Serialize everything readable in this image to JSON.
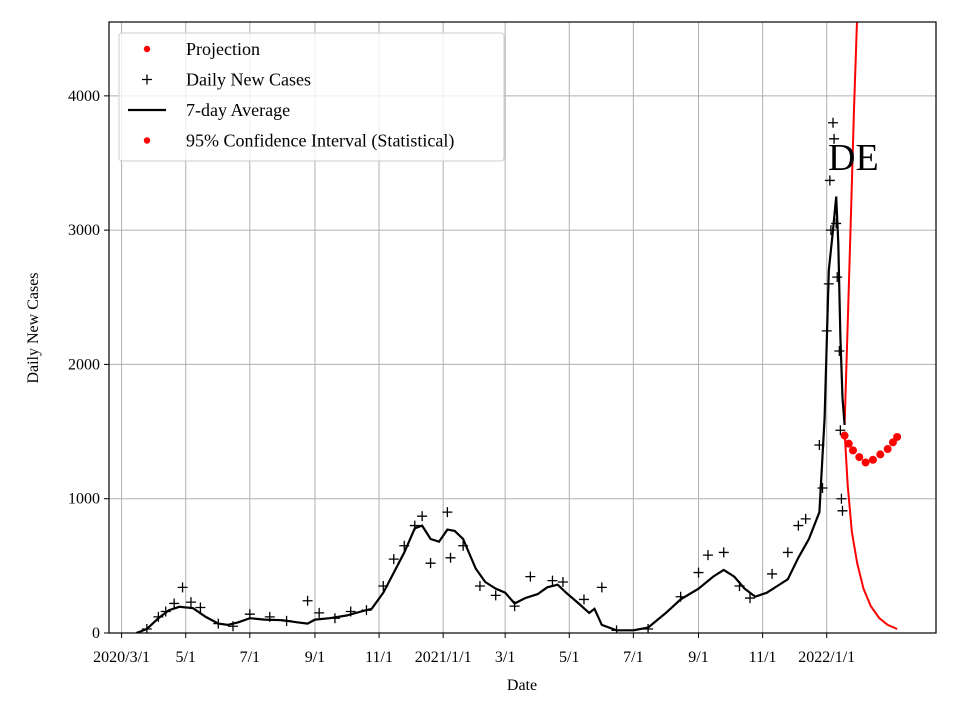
{
  "chart_data": {
    "type": "line",
    "region_label": "DE",
    "xlabel": "Date",
    "ylabel": "Daily New Cases",
    "ylim": [
      0,
      4550
    ],
    "xlim": [
      "2020-02-18",
      "2022-04-15"
    ],
    "grid": true,
    "legend_position": "top-left",
    "x_ticks": [
      {
        "date": "2020-03-01",
        "label": "2020/3/1"
      },
      {
        "date": "2020-05-01",
        "label": "5/1"
      },
      {
        "date": "2020-07-01",
        "label": "7/1"
      },
      {
        "date": "2020-09-01",
        "label": "9/1"
      },
      {
        "date": "2020-11-01",
        "label": "11/1"
      },
      {
        "date": "2021-01-01",
        "label": "2021/1/1"
      },
      {
        "date": "2021-03-01",
        "label": "3/1"
      },
      {
        "date": "2021-05-01",
        "label": "5/1"
      },
      {
        "date": "2021-07-01",
        "label": "7/1"
      },
      {
        "date": "2021-09-01",
        "label": "9/1"
      },
      {
        "date": "2021-11-01",
        "label": "11/1"
      },
      {
        "date": "2022-01-01",
        "label": "2022/1/1"
      }
    ],
    "y_ticks": [
      0,
      1000,
      2000,
      3000,
      4000
    ],
    "legend": [
      {
        "label": "Projection",
        "marker": "dot",
        "color": "#ff0000"
      },
      {
        "label": "Daily New Cases",
        "marker": "plus",
        "color": "#000000"
      },
      {
        "label": "7-day Average",
        "marker": "line",
        "color": "#000000"
      },
      {
        "label": "95% Confidence Interval (Statistical)",
        "marker": "dot",
        "color": "#ff0000"
      }
    ],
    "series": [
      {
        "name": "7-day Average",
        "color": "#000000",
        "points": [
          [
            "2020-03-15",
            0
          ],
          [
            "2020-03-25",
            30
          ],
          [
            "2020-04-05",
            110
          ],
          [
            "2020-04-15",
            170
          ],
          [
            "2020-04-25",
            195
          ],
          [
            "2020-05-08",
            185
          ],
          [
            "2020-05-20",
            120
          ],
          [
            "2020-06-01",
            70
          ],
          [
            "2020-06-10",
            60
          ],
          [
            "2020-06-20",
            80
          ],
          [
            "2020-07-01",
            110
          ],
          [
            "2020-07-15",
            100
          ],
          [
            "2020-08-01",
            95
          ],
          [
            "2020-08-15",
            80
          ],
          [
            "2020-08-25",
            70
          ],
          [
            "2020-09-01",
            100
          ],
          [
            "2020-09-15",
            110
          ],
          [
            "2020-10-01",
            130
          ],
          [
            "2020-10-15",
            160
          ],
          [
            "2020-10-25",
            180
          ],
          [
            "2020-11-05",
            300
          ],
          [
            "2020-11-15",
            450
          ],
          [
            "2020-11-25",
            600
          ],
          [
            "2020-12-05",
            780
          ],
          [
            "2020-12-12",
            800
          ],
          [
            "2020-12-20",
            700
          ],
          [
            "2020-12-28",
            680
          ],
          [
            "2021-01-05",
            770
          ],
          [
            "2021-01-12",
            760
          ],
          [
            "2021-01-20",
            700
          ],
          [
            "2021-02-01",
            480
          ],
          [
            "2021-02-10",
            380
          ],
          [
            "2021-02-20",
            330
          ],
          [
            "2021-03-01",
            300
          ],
          [
            "2021-03-10",
            220
          ],
          [
            "2021-03-20",
            260
          ],
          [
            "2021-04-01",
            290
          ],
          [
            "2021-04-10",
            340
          ],
          [
            "2021-04-20",
            360
          ],
          [
            "2021-04-28",
            300
          ],
          [
            "2021-05-10",
            220
          ],
          [
            "2021-05-20",
            150
          ],
          [
            "2021-05-25",
            180
          ],
          [
            "2021-06-01",
            60
          ],
          [
            "2021-06-15",
            20
          ],
          [
            "2021-07-01",
            20
          ],
          [
            "2021-07-15",
            40
          ],
          [
            "2021-08-01",
            150
          ],
          [
            "2021-08-15",
            250
          ],
          [
            "2021-09-01",
            330
          ],
          [
            "2021-09-15",
            420
          ],
          [
            "2021-09-25",
            470
          ],
          [
            "2021-10-05",
            420
          ],
          [
            "2021-10-15",
            330
          ],
          [
            "2021-10-25",
            270
          ],
          [
            "2021-11-05",
            300
          ],
          [
            "2021-11-15",
            350
          ],
          [
            "2021-11-25",
            400
          ],
          [
            "2021-12-05",
            560
          ],
          [
            "2021-12-15",
            700
          ],
          [
            "2021-12-25",
            900
          ],
          [
            "2021-12-30",
            1600
          ],
          [
            "2022-01-03",
            2700
          ],
          [
            "2022-01-07",
            3000
          ],
          [
            "2022-01-10",
            3250
          ],
          [
            "2022-01-12",
            2900
          ],
          [
            "2022-01-14",
            2200
          ],
          [
            "2022-01-16",
            1750
          ],
          [
            "2022-01-18",
            1550
          ]
        ]
      },
      {
        "name": "Projection",
        "color": "#ff0000",
        "points": [
          [
            "2022-01-18",
            1470
          ],
          [
            "2022-01-22",
            1410
          ],
          [
            "2022-01-26",
            1360
          ],
          [
            "2022-02-01",
            1310
          ],
          [
            "2022-02-07",
            1270
          ],
          [
            "2022-02-14",
            1290
          ],
          [
            "2022-02-21",
            1330
          ],
          [
            "2022-02-28",
            1370
          ],
          [
            "2022-03-05",
            1420
          ],
          [
            "2022-03-09",
            1460
          ]
        ]
      },
      {
        "name": "95% Confidence Interval (Statistical) upper",
        "color": "#ff0000",
        "points": [
          [
            "2022-01-18",
            1550
          ],
          [
            "2022-01-21",
            2300
          ],
          [
            "2022-01-24",
            3100
          ],
          [
            "2022-01-27",
            3900
          ],
          [
            "2022-01-30",
            4600
          ]
        ]
      },
      {
        "name": "95% Confidence Interval (Statistical) lower",
        "color": "#ff0000",
        "points": [
          [
            "2022-01-18",
            1500
          ],
          [
            "2022-01-21",
            1100
          ],
          [
            "2022-01-25",
            750
          ],
          [
            "2022-01-30",
            520
          ],
          [
            "2022-02-05",
            330
          ],
          [
            "2022-02-12",
            200
          ],
          [
            "2022-02-20",
            110
          ],
          [
            "2022-02-28",
            60
          ],
          [
            "2022-03-09",
            30
          ]
        ]
      },
      {
        "name": "Daily New Cases",
        "color": "#000000",
        "points": [
          [
            "2020-03-25",
            30
          ],
          [
            "2020-04-05",
            120
          ],
          [
            "2020-04-12",
            160
          ],
          [
            "2020-04-20",
            220
          ],
          [
            "2020-04-28",
            340
          ],
          [
            "2020-05-06",
            230
          ],
          [
            "2020-05-15",
            190
          ],
          [
            "2020-06-01",
            70
          ],
          [
            "2020-06-15",
            50
          ],
          [
            "2020-07-01",
            140
          ],
          [
            "2020-07-20",
            120
          ],
          [
            "2020-08-05",
            90
          ],
          [
            "2020-08-25",
            240
          ],
          [
            "2020-09-05",
            150
          ],
          [
            "2020-09-20",
            110
          ],
          [
            "2020-10-05",
            160
          ],
          [
            "2020-10-20",
            170
          ],
          [
            "2020-11-05",
            350
          ],
          [
            "2020-11-15",
            550
          ],
          [
            "2020-11-25",
            650
          ],
          [
            "2020-12-05",
            800
          ],
          [
            "2020-12-12",
            870
          ],
          [
            "2020-12-20",
            520
          ],
          [
            "2021-01-05",
            900
          ],
          [
            "2021-01-08",
            560
          ],
          [
            "2021-01-20",
            650
          ],
          [
            "2021-02-05",
            350
          ],
          [
            "2021-02-20",
            280
          ],
          [
            "2021-03-10",
            200
          ],
          [
            "2021-03-25",
            420
          ],
          [
            "2021-04-15",
            390
          ],
          [
            "2021-04-25",
            380
          ],
          [
            "2021-05-15",
            250
          ],
          [
            "2021-06-01",
            340
          ],
          [
            "2021-06-15",
            20
          ],
          [
            "2021-07-15",
            30
          ],
          [
            "2021-08-15",
            270
          ],
          [
            "2021-09-01",
            450
          ],
          [
            "2021-09-10",
            580
          ],
          [
            "2021-09-25",
            600
          ],
          [
            "2021-10-10",
            350
          ],
          [
            "2021-10-20",
            260
          ],
          [
            "2021-11-10",
            440
          ],
          [
            "2021-11-25",
            600
          ],
          [
            "2021-12-05",
            800
          ],
          [
            "2021-12-12",
            850
          ],
          [
            "2021-12-25",
            1400
          ],
          [
            "2021-12-28",
            1080
          ],
          [
            "2022-01-01",
            2250
          ],
          [
            "2022-01-03",
            2600
          ],
          [
            "2022-01-04",
            3370
          ],
          [
            "2022-01-05",
            3000
          ],
          [
            "2022-01-07",
            3800
          ],
          [
            "2022-01-08",
            3680
          ],
          [
            "2022-01-10",
            3050
          ],
          [
            "2022-01-11",
            2650
          ],
          [
            "2022-01-13",
            2100
          ],
          [
            "2022-01-14",
            1510
          ],
          [
            "2022-01-15",
            1000
          ],
          [
            "2022-01-16",
            910
          ]
        ]
      }
    ]
  }
}
